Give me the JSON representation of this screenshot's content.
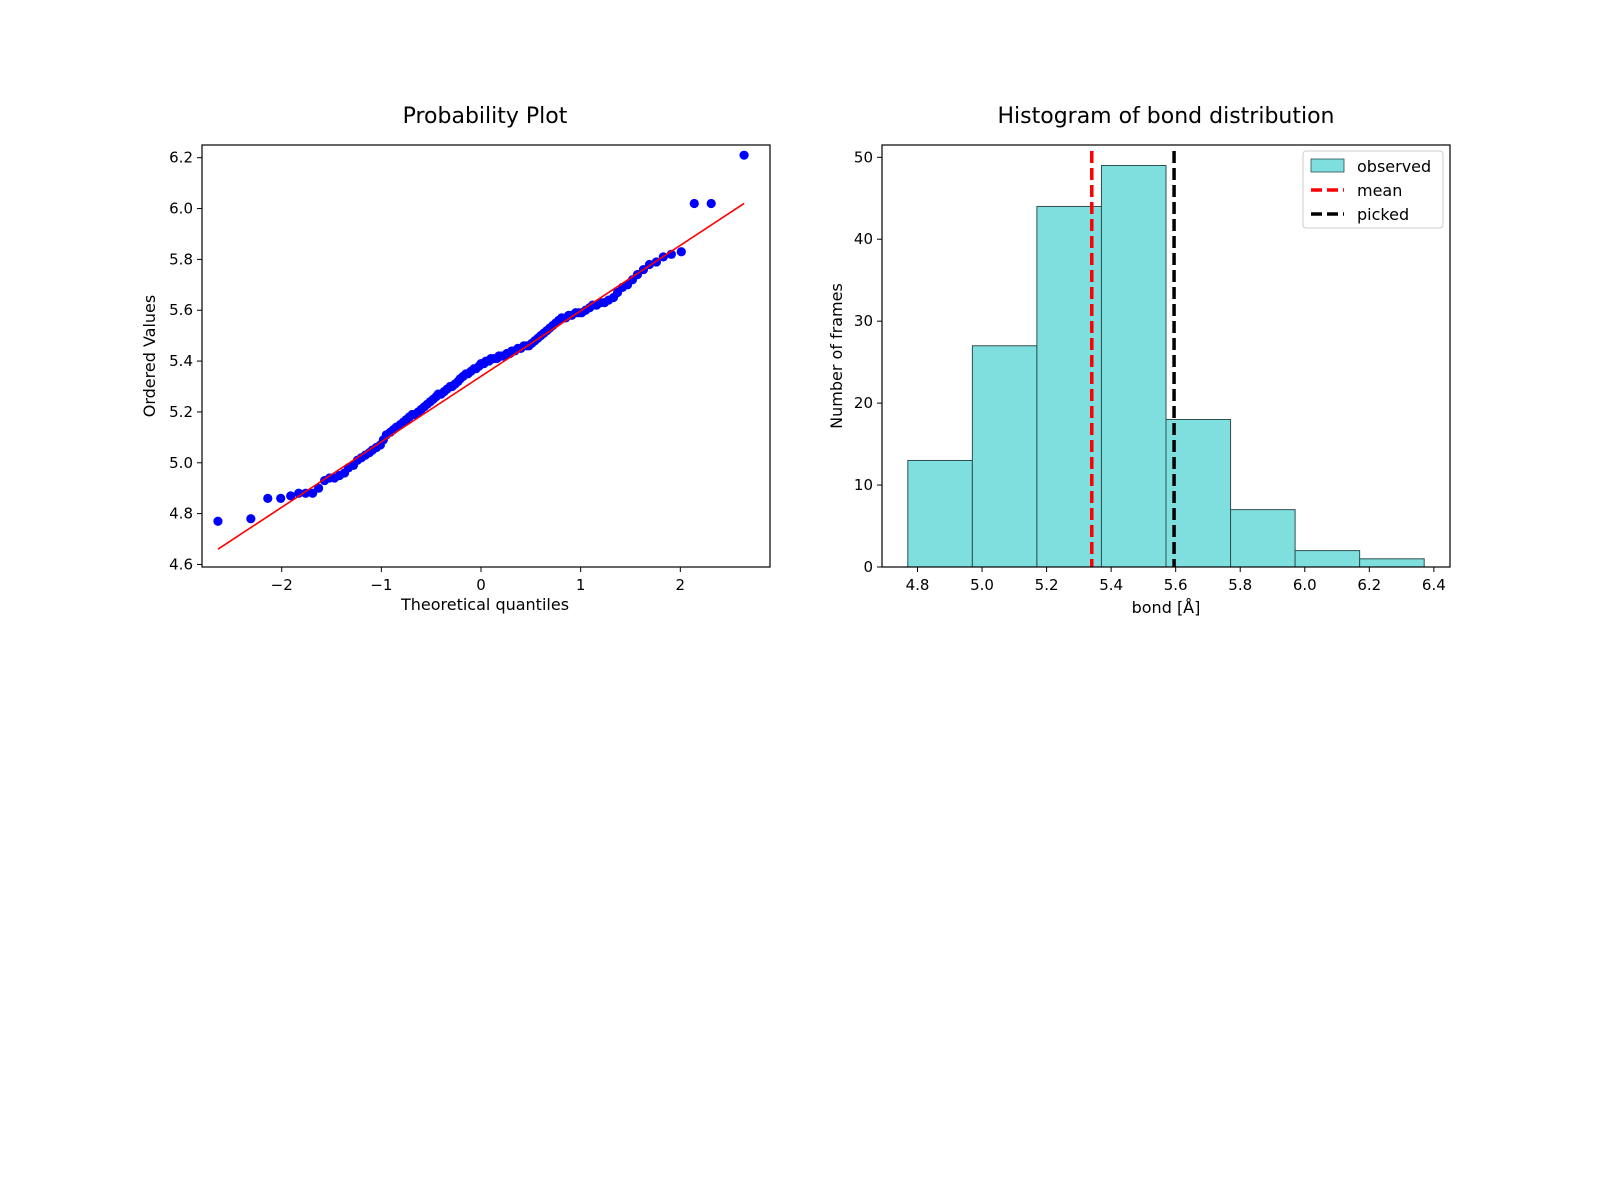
{
  "chart_data": [
    {
      "type": "scatter",
      "title": "Probability Plot",
      "xlabel": "Theoretical quantiles",
      "ylabel": "Ordered Values",
      "xlim": [
        -2.8,
        2.9
      ],
      "ylim": [
        4.59,
        6.25
      ],
      "x_ticks": [
        -2,
        -1,
        0,
        1,
        2
      ],
      "x_tick_labels": [
        "−2",
        "−1",
        "0",
        "1",
        "2"
      ],
      "y_ticks": [
        4.6,
        4.8,
        5.0,
        5.2,
        5.4,
        5.6,
        5.8,
        6.0,
        6.2
      ],
      "y_tick_labels": [
        "4.6",
        "4.8",
        "5.0",
        "5.2",
        "5.4",
        "5.6",
        "5.8",
        "6.0",
        "6.2"
      ],
      "grid": false,
      "point_color": "#0000ff",
      "fit_line_color": "#ff0000",
      "fit_line": {
        "x": [
          -2.64,
          2.64
        ],
        "y": [
          4.66,
          6.02
        ]
      },
      "series": [
        {
          "x": [
            -2.64,
            -2.31,
            -2.14,
            -2.01,
            -1.91,
            -1.83,
            -1.76,
            -1.69,
            -1.63,
            -1.57,
            -1.52,
            -1.47,
            -1.42,
            -1.37,
            -1.33,
            -1.28,
            -1.24,
            -1.2,
            -1.16,
            -1.12,
            -1.09,
            -1.05,
            -1.01,
            -0.98,
            -0.95,
            -0.91,
            -0.88,
            -0.85,
            -0.81,
            -0.78,
            -0.75,
            -0.72,
            -0.69,
            -0.66,
            -0.63,
            -0.6,
            -0.57,
            -0.54,
            -0.51,
            -0.48,
            -0.45,
            -0.43,
            -0.4,
            -0.37,
            -0.34,
            -0.31,
            -0.29,
            -0.26,
            -0.23,
            -0.21,
            -0.18,
            -0.15,
            -0.13,
            -0.1,
            -0.07,
            -0.05,
            -0.02,
            0.0,
            0.03,
            0.05,
            0.08,
            0.1,
            0.13,
            0.16,
            0.18,
            0.21,
            0.23,
            0.26,
            0.29,
            0.31,
            0.34,
            0.37,
            0.4,
            0.43,
            0.46,
            0.48,
            0.51,
            0.54,
            0.57,
            0.6,
            0.63,
            0.66,
            0.69,
            0.72,
            0.75,
            0.78,
            0.81,
            0.85,
            0.88,
            0.91,
            0.95,
            0.98,
            1.01,
            1.05,
            1.09,
            1.12,
            1.16,
            1.2,
            1.24,
            1.28,
            1.33,
            1.37,
            1.42,
            1.47,
            1.52,
            1.57,
            1.63,
            1.69,
            1.76,
            1.83,
            1.91,
            2.01,
            2.14,
            2.31,
            2.64
          ],
          "y": [
            4.77,
            4.78,
            4.86,
            4.86,
            4.87,
            4.88,
            4.88,
            4.88,
            4.9,
            4.93,
            4.94,
            4.94,
            4.95,
            4.96,
            4.98,
            4.99,
            5.01,
            5.02,
            5.03,
            5.04,
            5.05,
            5.06,
            5.07,
            5.09,
            5.11,
            5.12,
            5.13,
            5.14,
            5.15,
            5.16,
            5.17,
            5.18,
            5.19,
            5.19,
            5.2,
            5.21,
            5.22,
            5.23,
            5.24,
            5.25,
            5.26,
            5.27,
            5.27,
            5.28,
            5.29,
            5.3,
            5.3,
            5.31,
            5.32,
            5.33,
            5.34,
            5.35,
            5.35,
            5.36,
            5.37,
            5.37,
            5.38,
            5.39,
            5.39,
            5.4,
            5.4,
            5.41,
            5.41,
            5.41,
            5.42,
            5.42,
            5.42,
            5.43,
            5.43,
            5.44,
            5.44,
            5.45,
            5.45,
            5.46,
            5.46,
            5.46,
            5.47,
            5.48,
            5.49,
            5.5,
            5.51,
            5.52,
            5.53,
            5.54,
            5.55,
            5.56,
            5.57,
            5.57,
            5.58,
            5.58,
            5.59,
            5.59,
            5.59,
            5.6,
            5.61,
            5.62,
            5.62,
            5.63,
            5.63,
            5.64,
            5.65,
            5.67,
            5.69,
            5.7,
            5.72,
            5.74,
            5.76,
            5.78,
            5.79,
            5.81,
            5.82,
            5.83,
            6.02,
            6.02,
            6.21
          ]
        }
      ]
    },
    {
      "type": "bar",
      "title": "Histogram of bond distribution",
      "xlabel": "bond [Å]",
      "ylabel": "Number of frames",
      "xlim": [
        4.69,
        6.45
      ],
      "ylim": [
        0,
        51.5
      ],
      "x_ticks": [
        4.8,
        5.0,
        5.2,
        5.4,
        5.6,
        5.8,
        6.0,
        6.2,
        6.4
      ],
      "x_tick_labels": [
        "4.8",
        "5.0",
        "5.2",
        "5.4",
        "5.6",
        "5.8",
        "6.0",
        "6.2",
        "6.4"
      ],
      "y_ticks": [
        0,
        10,
        20,
        30,
        40,
        50
      ],
      "y_tick_labels": [
        "0",
        "10",
        "20",
        "30",
        "40",
        "50"
      ],
      "grid": false,
      "bin_edges": [
        4.77,
        4.97,
        5.17,
        5.37,
        5.57,
        5.77,
        5.97,
        6.17,
        6.37
      ],
      "values": [
        13,
        27,
        44,
        49,
        18,
        7,
        2,
        1
      ],
      "bar_color": "#7fdfde",
      "bar_edge_color": "#2f4f4f",
      "vlines": [
        {
          "name": "mean",
          "x": 5.34,
          "color": "#ff0000",
          "style": "dashed"
        },
        {
          "name": "picked",
          "x": 5.595,
          "color": "#000000",
          "style": "dashed"
        }
      ],
      "legend": {
        "placement": "top-right",
        "entries": [
          {
            "label": "observed",
            "kind": "patch",
            "color": "#7fdfde"
          },
          {
            "label": "mean",
            "kind": "line",
            "color": "#ff0000"
          },
          {
            "label": "picked",
            "kind": "line",
            "color": "#000000"
          }
        ]
      }
    }
  ]
}
